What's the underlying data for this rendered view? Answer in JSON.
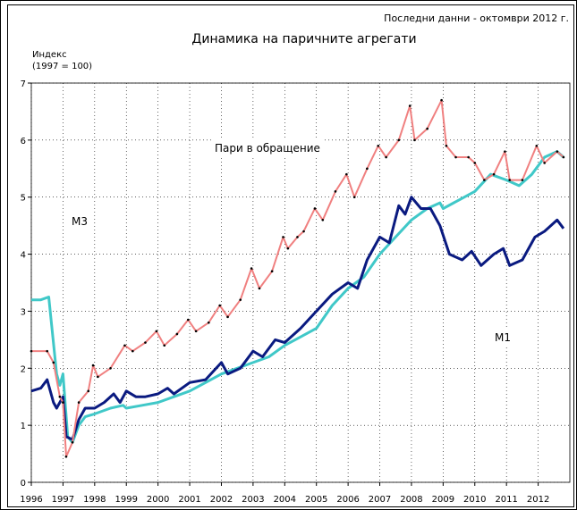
{
  "chart_data": {
    "type": "line",
    "title": "Динамика на паричните агрегати",
    "subtitle": "Последни данни - октомври 2012 г.",
    "y_label": [
      "Индекс",
      "(1997 = 100)"
    ],
    "xlim": [
      1996,
      2013
    ],
    "xticks": [
      1996,
      1997,
      1998,
      1999,
      2000,
      2001,
      2002,
      2003,
      2004,
      2005,
      2006,
      2007,
      2008,
      2009,
      2010,
      2011,
      2012
    ],
    "ylim": [
      0,
      7
    ],
    "yticks": [
      0,
      1,
      2,
      3,
      4,
      5,
      6,
      7
    ],
    "grid": true,
    "series": [
      {
        "name": "M3",
        "color": "#40c8c8",
        "x": [
          1996.0,
          1996.3,
          1996.55,
          1996.8,
          1996.9,
          1997.0,
          1997.15,
          1997.3,
          1997.5,
          1997.7,
          1998.0,
          1998.5,
          1998.9,
          1999.0,
          1999.5,
          2000.0,
          2000.5,
          2001.0,
          2001.5,
          2002.0,
          2002.5,
          2003.0,
          2003.5,
          2004.0,
          2004.5,
          2005.0,
          2005.5,
          2006.0,
          2006.5,
          2007.0,
          2007.5,
          2008.0,
          2008.5,
          2008.9,
          2009.0,
          2009.5,
          2010.0,
          2010.5,
          2011.0,
          2011.4,
          2011.8,
          2012.2,
          2012.6,
          2012.8
        ],
        "values": [
          3.2,
          3.2,
          3.25,
          1.9,
          1.7,
          1.9,
          0.8,
          0.7,
          1.0,
          1.15,
          1.2,
          1.3,
          1.35,
          1.3,
          1.35,
          1.4,
          1.5,
          1.6,
          1.75,
          1.9,
          2.0,
          2.1,
          2.2,
          2.4,
          2.55,
          2.7,
          3.1,
          3.4,
          3.6,
          4.0,
          4.3,
          4.6,
          4.8,
          4.9,
          4.8,
          4.95,
          5.1,
          5.4,
          5.3,
          5.2,
          5.4,
          5.7,
          5.8,
          5.7
        ]
      },
      {
        "name": "M1",
        "color": "#0a1a80",
        "x": [
          1996.0,
          1996.3,
          1996.5,
          1996.7,
          1996.8,
          1997.0,
          1997.1,
          1997.3,
          1997.5,
          1997.7,
          1998.0,
          1998.3,
          1998.6,
          1998.8,
          1999.0,
          1999.3,
          1999.6,
          2000.0,
          2000.3,
          2000.5,
          2001.0,
          2001.5,
          2002.0,
          2002.2,
          2002.6,
          2003.0,
          2003.3,
          2003.7,
          2004.0,
          2004.5,
          2005.0,
          2005.5,
          2006.0,
          2006.3,
          2006.6,
          2007.0,
          2007.3,
          2007.6,
          2007.8,
          2008.0,
          2008.3,
          2008.6,
          2008.9,
          2009.2,
          2009.6,
          2009.9,
          2010.2,
          2010.6,
          2010.9,
          2011.1,
          2011.5,
          2011.9,
          2012.2,
          2012.6,
          2012.8
        ],
        "values": [
          1.6,
          1.65,
          1.8,
          1.4,
          1.3,
          1.5,
          0.8,
          0.75,
          1.1,
          1.3,
          1.3,
          1.4,
          1.55,
          1.4,
          1.6,
          1.5,
          1.5,
          1.55,
          1.65,
          1.55,
          1.75,
          1.8,
          2.1,
          1.9,
          2.0,
          2.3,
          2.2,
          2.5,
          2.45,
          2.7,
          3.0,
          3.3,
          3.5,
          3.4,
          3.9,
          4.3,
          4.2,
          4.85,
          4.7,
          5.0,
          4.8,
          4.8,
          4.5,
          4.0,
          3.9,
          4.05,
          3.8,
          4.0,
          4.1,
          3.8,
          3.9,
          4.3,
          4.4,
          4.6,
          4.45
        ]
      },
      {
        "name": "Пари в обращение",
        "color": "#f08080",
        "x": [
          1996.0,
          1996.5,
          1996.7,
          1996.9,
          1997.0,
          1997.1,
          1997.3,
          1997.5,
          1997.8,
          1997.95,
          1998.1,
          1998.5,
          1998.95,
          1999.2,
          1999.6,
          1999.95,
          2000.2,
          2000.6,
          2000.95,
          2001.2,
          2001.6,
          2001.95,
          2002.2,
          2002.6,
          2002.95,
          2003.2,
          2003.6,
          2003.95,
          2004.1,
          2004.4,
          2004.6,
          2004.95,
          2005.2,
          2005.6,
          2005.95,
          2006.2,
          2006.6,
          2006.95,
          2007.2,
          2007.6,
          2007.95,
          2008.1,
          2008.5,
          2008.95,
          2009.1,
          2009.4,
          2009.8,
          2010.0,
          2010.3,
          2010.6,
          2010.95,
          2011.1,
          2011.5,
          2011.95,
          2012.2,
          2012.6,
          2012.8
        ],
        "values": [
          2.3,
          2.3,
          2.1,
          1.5,
          1.4,
          0.45,
          0.7,
          1.4,
          1.6,
          2.05,
          1.85,
          2.0,
          2.4,
          2.3,
          2.45,
          2.65,
          2.4,
          2.6,
          2.85,
          2.65,
          2.8,
          3.1,
          2.9,
          3.2,
          3.75,
          3.4,
          3.7,
          4.3,
          4.1,
          4.3,
          4.4,
          4.8,
          4.6,
          5.1,
          5.4,
          5.0,
          5.5,
          5.9,
          5.7,
          6.0,
          6.6,
          6.0,
          6.2,
          6.7,
          5.9,
          5.7,
          5.7,
          5.6,
          5.3,
          5.4,
          5.8,
          5.3,
          5.3,
          5.9,
          5.6,
          5.8,
          5.7
        ]
      }
    ]
  }
}
